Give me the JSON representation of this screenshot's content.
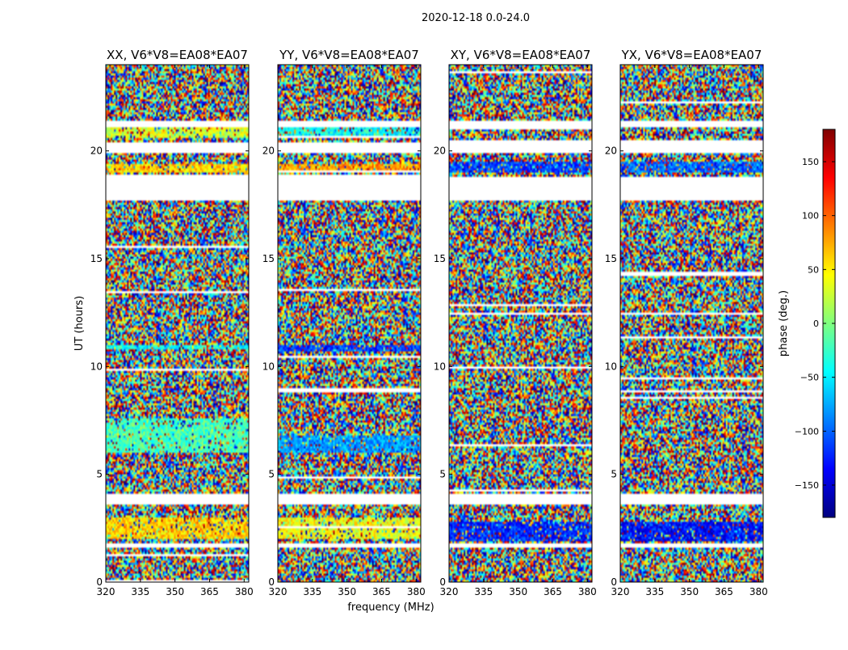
{
  "figure": {
    "suptitle": "2020-12-18 0.0-24.0",
    "xlabel": "frequency (MHz)",
    "ylabel": "UT (hours)"
  },
  "colorbar": {
    "label": "phase (deg.)",
    "range": [
      -180,
      180
    ],
    "ticks": [
      150,
      100,
      50,
      0,
      -50,
      -100,
      -150
    ],
    "tick_labels": [
      "150",
      "100",
      "50",
      "0",
      "−50",
      "−100",
      "−150"
    ],
    "colormap": "jet",
    "stops": [
      "#00007f",
      "#0000ff",
      "#007fff",
      "#00ffff",
      "#7fff7f",
      "#ffff00",
      "#ff7f00",
      "#ff0000",
      "#7f0000"
    ]
  },
  "chart_data": [
    {
      "type": "heatmap",
      "title": "XX, V6*V8=EA08*EA07",
      "xlabel": "",
      "ylabel": "UT (hours)",
      "xlim": [
        320,
        382
      ],
      "ylim": [
        0,
        24
      ],
      "xticks": [
        320,
        335,
        350,
        365,
        380
      ],
      "xtick_labels": [
        "320",
        "335",
        "350",
        "365",
        "380"
      ],
      "yticks": [
        0,
        5,
        10,
        15,
        20
      ],
      "ytick_labels": [
        "0",
        "5",
        "10",
        "15",
        "20"
      ],
      "value": "phase (deg.)",
      "flagged_hours": [
        [
          17.7,
          18.9
        ],
        [
          19.9,
          20.4
        ],
        [
          21.1,
          21.4
        ],
        [
          3.6,
          4.1
        ],
        [
          1.6,
          1.8
        ]
      ],
      "coherent_bands_deg": [
        {
          "hours": [
            20.6,
            21.1
          ],
          "phase": 30
        },
        {
          "hours": [
            19.0,
            19.4
          ],
          "phase": 60
        },
        {
          "hours": [
            2.0,
            3.0
          ],
          "phase": 60
        },
        {
          "hours": [
            6.0,
            7.6
          ],
          "phase": -20
        },
        {
          "hours": [
            10.8,
            11.0
          ],
          "phase": -40
        }
      ]
    },
    {
      "type": "heatmap",
      "title": "YY, V6*V8=EA08*EA07",
      "xlabel": "frequency (MHz)",
      "ylabel": "",
      "xlim": [
        320,
        382
      ],
      "ylim": [
        0,
        24
      ],
      "xticks": [
        320,
        335,
        350,
        365,
        380
      ],
      "xtick_labels": [
        "320",
        "335",
        "350",
        "365",
        "380"
      ],
      "yticks": [
        0,
        5,
        10,
        15,
        20
      ],
      "ytick_labels": [
        "0",
        "5",
        "10",
        "15",
        "20"
      ],
      "value": "phase (deg.)",
      "flagged_hours": [
        [
          17.7,
          18.9
        ],
        [
          19.9,
          20.4
        ],
        [
          21.1,
          21.4
        ],
        [
          3.6,
          4.1
        ],
        [
          1.6,
          1.8
        ]
      ],
      "coherent_bands_deg": [
        {
          "hours": [
            20.6,
            21.1
          ],
          "phase": -40
        },
        {
          "hours": [
            19.0,
            19.4
          ],
          "phase": 80
        },
        {
          "hours": [
            2.0,
            3.0
          ],
          "phase": 40
        },
        {
          "hours": [
            6.0,
            6.8
          ],
          "phase": -80
        },
        {
          "hours": [
            10.7,
            11.0
          ],
          "phase": -110
        }
      ]
    },
    {
      "type": "heatmap",
      "title": "XY, V6*V8=EA08*EA07",
      "xlabel": "",
      "ylabel": "",
      "xlim": [
        320,
        382
      ],
      "ylim": [
        0,
        24
      ],
      "xticks": [
        320,
        335,
        350,
        365,
        380
      ],
      "xtick_labels": [
        "320",
        "335",
        "350",
        "365",
        "380"
      ],
      "yticks": [
        0,
        5,
        10,
        15,
        20
      ],
      "ytick_labels": [
        "0",
        "5",
        "10",
        "15",
        "20"
      ],
      "value": "phase (deg.)",
      "flagged_hours": [
        [
          17.7,
          18.8
        ],
        [
          19.9,
          20.5
        ],
        [
          21.1,
          21.4
        ],
        [
          3.6,
          4.1
        ],
        [
          1.6,
          1.8
        ]
      ],
      "coherent_bands_deg": [
        {
          "hours": [
            19.0,
            19.5
          ],
          "phase": -110
        },
        {
          "hours": [
            1.9,
            2.8
          ],
          "phase": -120
        }
      ]
    },
    {
      "type": "heatmap",
      "title": "YX, V6*V8=EA08*EA07",
      "xlabel": "",
      "ylabel": "",
      "xlim": [
        320,
        382
      ],
      "ylim": [
        0,
        24
      ],
      "xticks": [
        320,
        335,
        350,
        365,
        380
      ],
      "xtick_labels": [
        "320",
        "335",
        "350",
        "365",
        "380"
      ],
      "yticks": [
        0,
        5,
        10,
        15,
        20
      ],
      "ytick_labels": [
        "0",
        "5",
        "10",
        "15",
        "20"
      ],
      "value": "phase (deg.)",
      "flagged_hours": [
        [
          17.7,
          18.8
        ],
        [
          19.9,
          20.5
        ],
        [
          21.1,
          21.4
        ],
        [
          3.6,
          4.1
        ],
        [
          1.6,
          1.8
        ]
      ],
      "coherent_bands_deg": [
        {
          "hours": [
            19.0,
            19.5
          ],
          "phase": -100
        },
        {
          "hours": [
            1.9,
            2.8
          ],
          "phase": -130
        }
      ]
    }
  ]
}
